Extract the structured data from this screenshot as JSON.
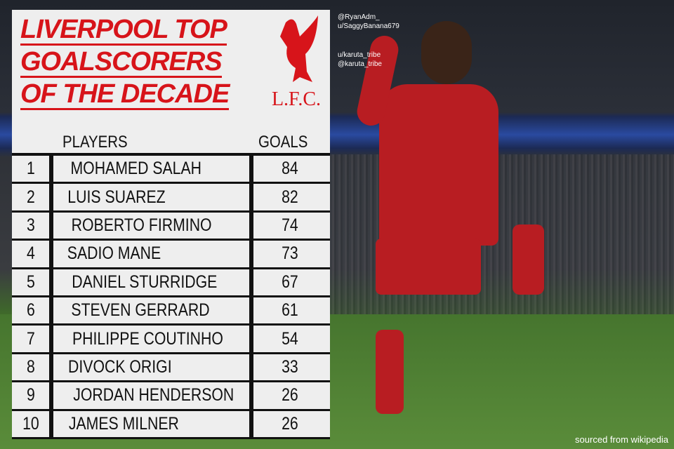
{
  "title_lines": [
    "LIVERPOOL TOP",
    "GOALSCORERS",
    "OF THE DECADE"
  ],
  "logo_text": "L.F.C.",
  "table": {
    "headers": {
      "players": "PLAYERS",
      "goals": "GOALS"
    },
    "rows": [
      {
        "rank": "1",
        "player": "MOHAMED SALAH",
        "goals": "84"
      },
      {
        "rank": "2",
        "player": "LUIS SUAREZ",
        "goals": "82"
      },
      {
        "rank": "3",
        "player": "ROBERTO FIRMINO",
        "goals": "74"
      },
      {
        "rank": "4",
        "player": "SADIO MANE",
        "goals": "73"
      },
      {
        "rank": "5",
        "player": "DANIEL STURRIDGE",
        "goals": "67"
      },
      {
        "rank": "6",
        "player": "STEVEN GERRARD",
        "goals": "61"
      },
      {
        "rank": "7",
        "player": "PHILIPPE COUTINHO",
        "goals": "54"
      },
      {
        "rank": "8",
        "player": "DIVOCK ORIGI",
        "goals": "33"
      },
      {
        "rank": "9",
        "player": "JORDAN HENDERSON",
        "goals": "26"
      },
      {
        "rank": "10",
        "player": "JAMES MILNER",
        "goals": "26"
      }
    ]
  },
  "credits": [
    "@RyanAdm_",
    "u/SaggyBanana679",
    "u/karuta_tribe",
    "@karuta_tribe"
  ],
  "source": "sourced from wikipedia",
  "colors": {
    "accent": "#d7141a",
    "panel": "#eeeeee",
    "lines": "#111111"
  }
}
